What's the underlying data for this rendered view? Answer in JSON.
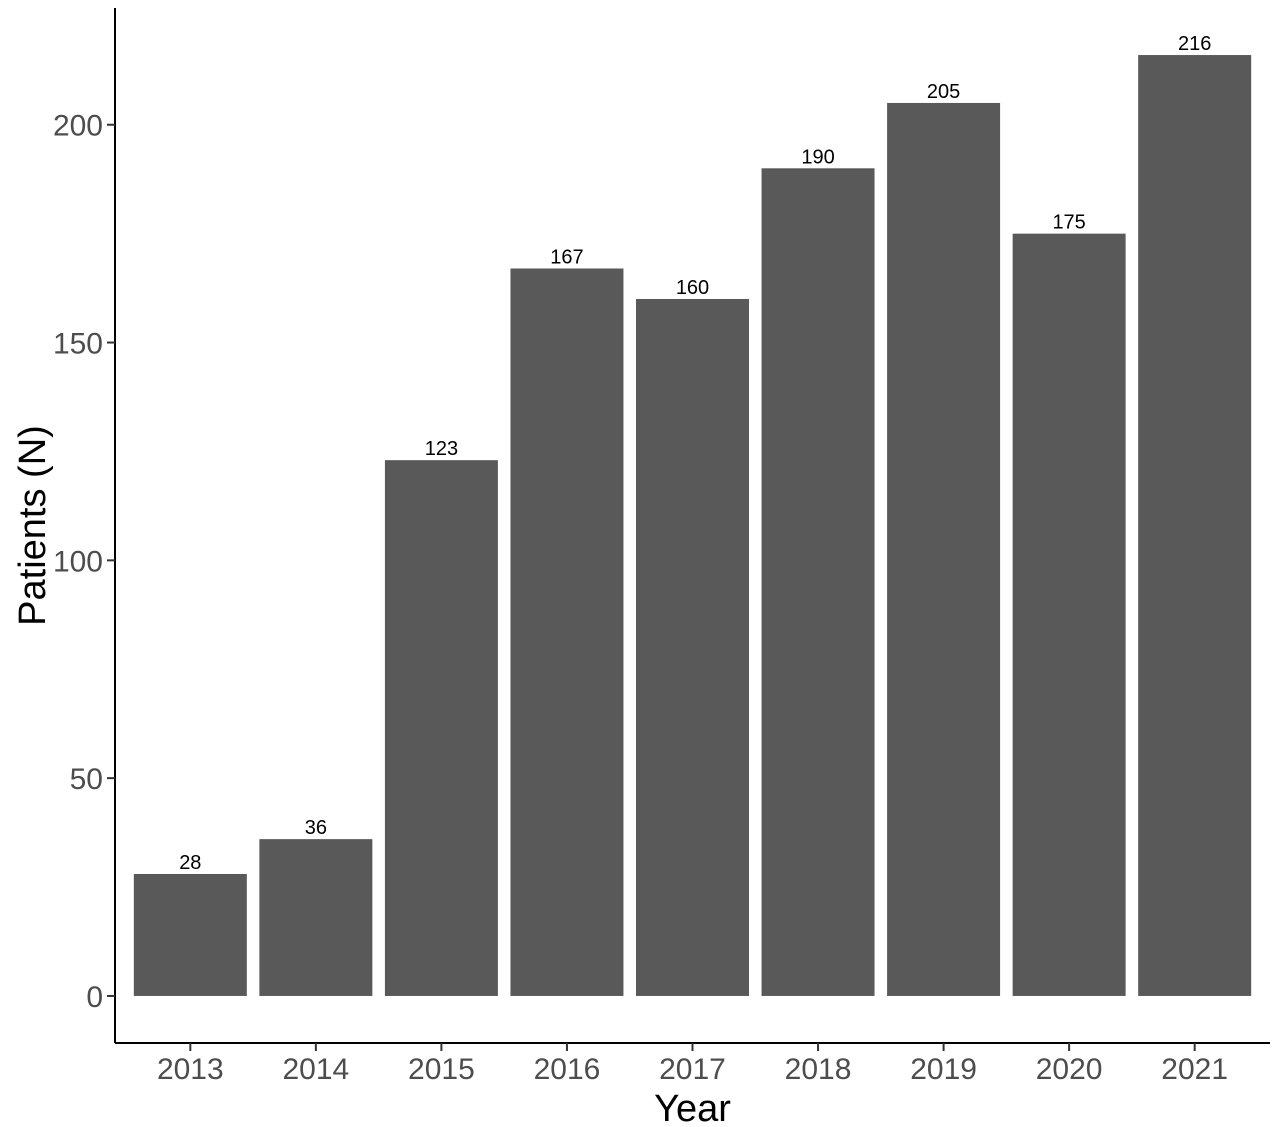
{
  "chart_data": {
    "type": "bar",
    "categories": [
      "2013",
      "2014",
      "2015",
      "2016",
      "2017",
      "2018",
      "2019",
      "2020",
      "2021"
    ],
    "values": [
      28,
      36,
      123,
      167,
      160,
      190,
      205,
      175,
      216
    ],
    "data_labels": [
      "28",
      "36",
      "123",
      "167",
      "160",
      "190",
      "205",
      "175",
      "216"
    ],
    "xlabel": "Year",
    "ylabel": "Patients (N)",
    "yticks": [
      0,
      50,
      100,
      150,
      200
    ],
    "ytick_labels": [
      "0",
      "50",
      "100",
      "150",
      "200"
    ],
    "ylim": [
      -10.8,
      226.8
    ],
    "grid": false,
    "legend": "none",
    "bar_color": "#595959"
  }
}
